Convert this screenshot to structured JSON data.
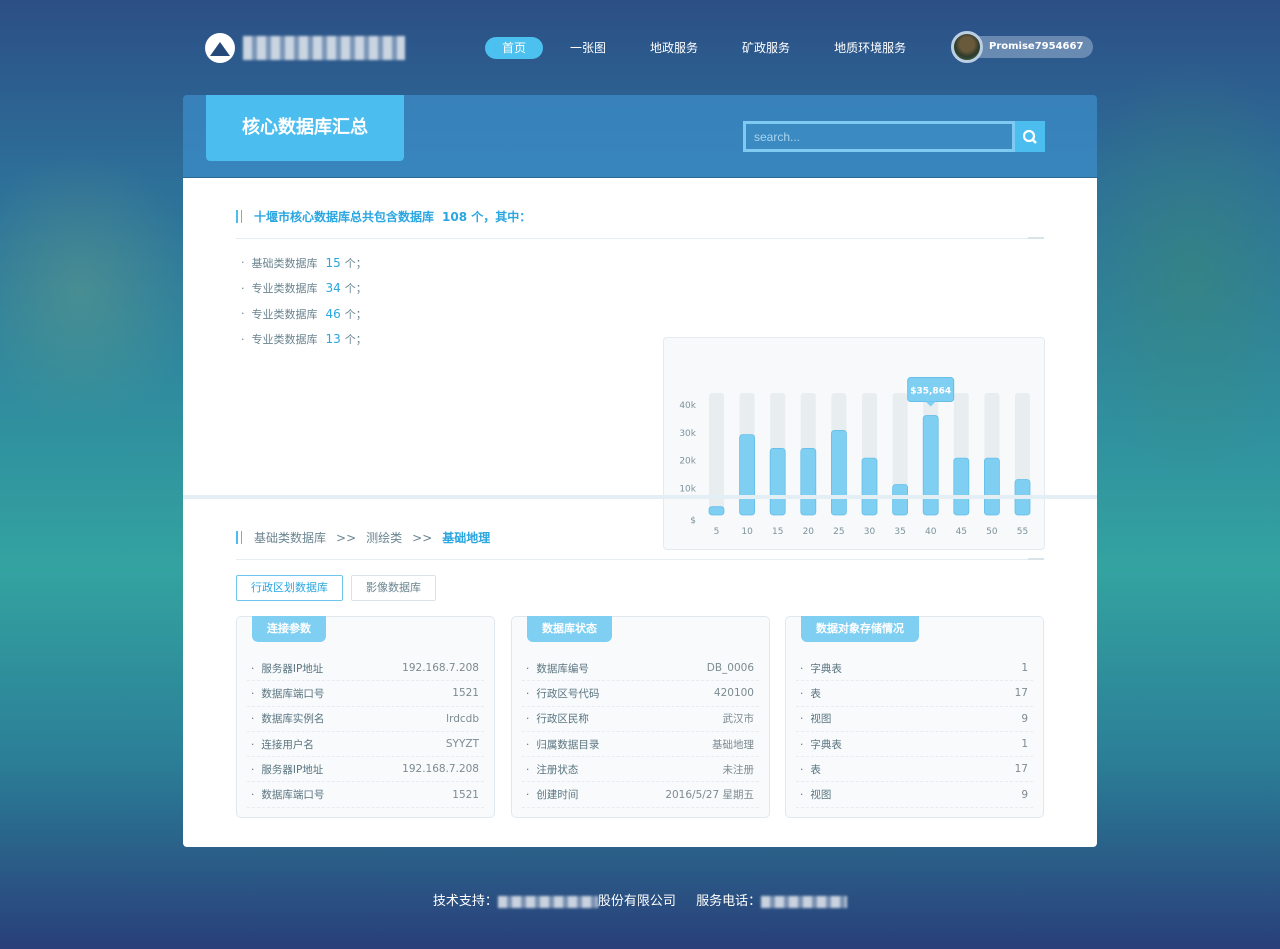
{
  "header": {
    "logo_text": "十堰市核心数据库",
    "nav": [
      "首页",
      "一张图",
      "地政服务",
      "矿政服务",
      "地质环境服务"
    ],
    "active_nav": 0,
    "username": "Promise7954667"
  },
  "panel": {
    "title": "核心数据库汇总",
    "search_placeholder": "search..."
  },
  "summary": {
    "prefix": "十堰市核心数据库总共包含数据库",
    "total": "108 个，其中：",
    "items": [
      {
        "label": "基础类数据库",
        "count": "15",
        "unit": "个；"
      },
      {
        "label": "专业类数据库",
        "count": "34",
        "unit": "个；"
      },
      {
        "label": "专业类数据库",
        "count": "46",
        "unit": "个；"
      },
      {
        "label": "专业类数据库",
        "count": "13",
        "unit": "个；"
      }
    ]
  },
  "chart_data": {
    "type": "bar",
    "categories": [
      "5",
      "10",
      "15",
      "20",
      "25",
      "30",
      "35",
      "40",
      "45",
      "50",
      "55"
    ],
    "values": [
      3000,
      29000,
      24000,
      24000,
      30500,
      20500,
      11000,
      35864,
      20500,
      20500,
      12800
    ],
    "y_ticks": [
      "$",
      "10k",
      "20k",
      "30k",
      "40k"
    ],
    "ylim": [
      0,
      44000
    ],
    "tooltip": "$35,864",
    "highlight_index": 7,
    "colors": {
      "bar": "#7fcff2",
      "track": "#e8edf0"
    }
  },
  "breadcrumb": [
    "基础类数据库",
    ">>",
    "测绘类",
    ">>",
    "基础地理"
  ],
  "tabs": [
    "行政区划数据库",
    "影像数据库"
  ],
  "cards": [
    {
      "title": "连接参数",
      "rows": [
        [
          "服务器IP地址",
          "192.168.7.208"
        ],
        [
          "数据库端口号",
          "1521"
        ],
        [
          "数据库实例名",
          "lrdcdb"
        ],
        [
          "连接用户名",
          "SYYZT"
        ],
        [
          "服务器IP地址",
          "192.168.7.208"
        ],
        [
          "数据库端口号",
          "1521"
        ]
      ]
    },
    {
      "title": "数据库状态",
      "rows": [
        [
          "数据库编号",
          "DB_0006"
        ],
        [
          "行政区号代码",
          "420100"
        ],
        [
          "行政区民称",
          "武汉市"
        ],
        [
          "归属数据目录",
          "基础地理"
        ],
        [
          "注册状态",
          "未注册"
        ],
        [
          "创建时间",
          "2016/5/27 星期五"
        ]
      ]
    },
    {
      "title": "数据对象存储情况",
      "rows": [
        [
          "字典表",
          "1"
        ],
        [
          "表",
          "17"
        ],
        [
          "视图",
          "9"
        ],
        [
          "字典表",
          "1"
        ],
        [
          "表",
          "17"
        ],
        [
          "视图",
          "9"
        ]
      ]
    }
  ],
  "footer": {
    "support_label": "技术支持：",
    "support_suffix": "股份有限公司",
    "phone_label": "服务电话："
  }
}
